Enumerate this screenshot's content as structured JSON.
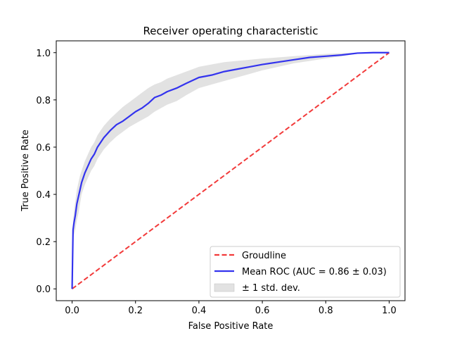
{
  "chart_data": {
    "type": "line",
    "title": "Receiver operating characteristic",
    "xlabel": "False Positive Rate",
    "ylabel": "True Positive Rate",
    "xlim": [
      -0.05,
      1.05
    ],
    "ylim": [
      -0.05,
      1.05
    ],
    "xticks": [
      0.0,
      0.2,
      0.4,
      0.6,
      0.8,
      1.0
    ],
    "yticks": [
      0.0,
      0.2,
      0.4,
      0.6,
      0.8,
      1.0
    ],
    "xtick_labels": [
      "0.0",
      "0.2",
      "0.4",
      "0.6",
      "0.8",
      "1.0"
    ],
    "ytick_labels": [
      "0.0",
      "0.2",
      "0.4",
      "0.6",
      "0.8",
      "1.0"
    ],
    "grid": false,
    "legend_position": "lower-right",
    "series": [
      {
        "name": "Groudline",
        "style": "dashed",
        "color": "#f23a3a",
        "x": [
          0.0,
          1.0
        ],
        "y": [
          0.0,
          1.0
        ]
      },
      {
        "name": "Mean ROC (AUC = 0.86 ± 0.03)",
        "style": "solid",
        "color": "#3333ee",
        "x": [
          0.0,
          0.003,
          0.006,
          0.01,
          0.015,
          0.02,
          0.025,
          0.03,
          0.04,
          0.05,
          0.06,
          0.07,
          0.08,
          0.1,
          0.12,
          0.14,
          0.16,
          0.18,
          0.2,
          0.22,
          0.24,
          0.26,
          0.28,
          0.3,
          0.33,
          0.36,
          0.4,
          0.44,
          0.48,
          0.52,
          0.56,
          0.6,
          0.65,
          0.7,
          0.75,
          0.8,
          0.85,
          0.9,
          0.95,
          1.0
        ],
        "y": [
          0.0,
          0.25,
          0.28,
          0.31,
          0.36,
          0.39,
          0.42,
          0.45,
          0.49,
          0.52,
          0.55,
          0.57,
          0.6,
          0.64,
          0.67,
          0.695,
          0.71,
          0.73,
          0.75,
          0.765,
          0.785,
          0.81,
          0.82,
          0.835,
          0.85,
          0.87,
          0.895,
          0.905,
          0.92,
          0.93,
          0.94,
          0.95,
          0.96,
          0.97,
          0.98,
          0.985,
          0.99,
          0.998,
          1.0,
          1.0
        ]
      },
      {
        "name": "± 1 std. dev.",
        "style": "band",
        "color": "#d8d8d8",
        "x": [
          0.0,
          0.003,
          0.006,
          0.01,
          0.015,
          0.02,
          0.025,
          0.03,
          0.04,
          0.05,
          0.06,
          0.07,
          0.08,
          0.1,
          0.12,
          0.14,
          0.16,
          0.18,
          0.2,
          0.22,
          0.24,
          0.26,
          0.28,
          0.3,
          0.33,
          0.36,
          0.4,
          0.44,
          0.48,
          0.52,
          0.56,
          0.6,
          0.65,
          0.7,
          0.75,
          0.8,
          0.85,
          0.9,
          0.95,
          1.0
        ],
        "upper": [
          0.0,
          0.29,
          0.33,
          0.37,
          0.42,
          0.45,
          0.48,
          0.5,
          0.54,
          0.57,
          0.6,
          0.62,
          0.65,
          0.69,
          0.72,
          0.745,
          0.77,
          0.79,
          0.81,
          0.83,
          0.85,
          0.865,
          0.875,
          0.89,
          0.905,
          0.92,
          0.94,
          0.95,
          0.96,
          0.965,
          0.97,
          0.975,
          0.98,
          0.985,
          0.99,
          0.995,
          0.998,
          1.0,
          1.0,
          1.0
        ],
        "lower": [
          0.0,
          0.21,
          0.23,
          0.25,
          0.29,
          0.32,
          0.36,
          0.4,
          0.44,
          0.47,
          0.5,
          0.52,
          0.55,
          0.59,
          0.62,
          0.645,
          0.665,
          0.685,
          0.7,
          0.715,
          0.73,
          0.75,
          0.765,
          0.78,
          0.795,
          0.82,
          0.85,
          0.865,
          0.88,
          0.895,
          0.91,
          0.925,
          0.94,
          0.955,
          0.965,
          0.975,
          0.985,
          0.995,
          1.0,
          1.0
        ]
      }
    ]
  }
}
